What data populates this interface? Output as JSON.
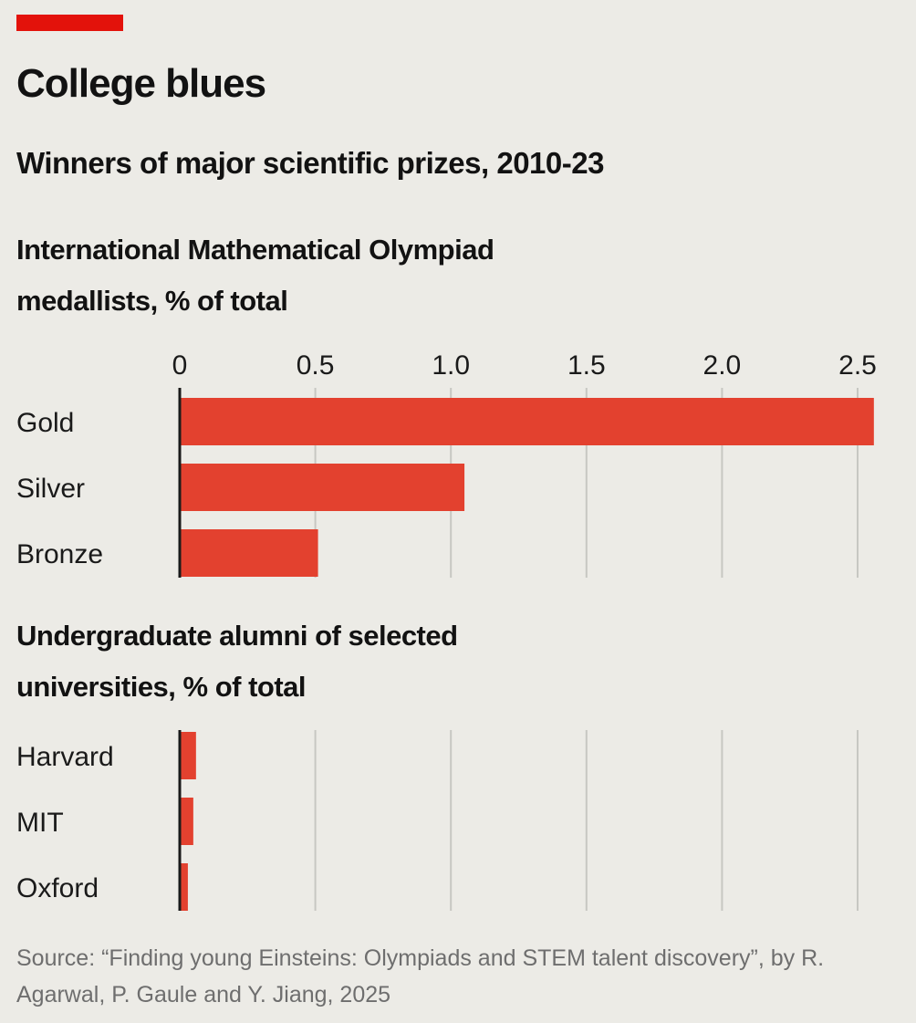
{
  "header": {
    "title": "College blues",
    "subtitle": "Winners of major scientific prizes, 2010-23"
  },
  "colors": {
    "bar": "#e3412f",
    "red_tag": "#e3120b",
    "grid": "#c7c7c2",
    "axis": "#1a1a1a",
    "background": "#ecebe6"
  },
  "chart_data": [
    {
      "type": "bar",
      "orientation": "horizontal",
      "title": "International Mathematical Olympiad medallists, % of total",
      "categories": [
        "Gold",
        "Silver",
        "Bronze"
      ],
      "values": [
        2.56,
        1.05,
        0.51
      ],
      "xlim": [
        0,
        2.5
      ],
      "ticks": [
        "0",
        "0.5",
        "1.0",
        "1.5",
        "2.0",
        "2.5"
      ],
      "grid": true
    },
    {
      "type": "bar",
      "orientation": "horizontal",
      "title": "Undergraduate alumni of selected universities, % of total",
      "categories": [
        "Harvard",
        "MIT",
        "Oxford"
      ],
      "values": [
        0.06,
        0.05,
        0.03
      ],
      "xlim": [
        0,
        2.5
      ],
      "grid": true
    }
  ],
  "source": "Source: “Finding young Einsteins: Olympiads and STEM talent discovery”, by R. Agarwal, P. Gaule and Y. Jiang, 2025"
}
